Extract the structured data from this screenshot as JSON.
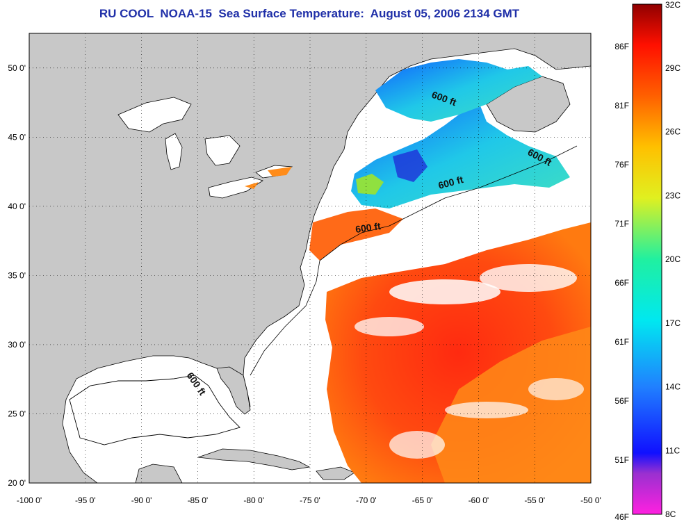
{
  "title": "RU COOL  NOAA-15  Sea Surface Temperature:  August 05, 2006 2134 GMT",
  "map": {
    "lon_range": [
      -100,
      -50
    ],
    "lat_range": [
      20,
      52.5
    ],
    "lon_ticks": [
      "-100 0'",
      "-95 0'",
      "-90 0'",
      "-85 0'",
      "-80 0'",
      "-75 0'",
      "-70 0'",
      "-65 0'",
      "-60 0'",
      "-55 0'",
      "-50 0'"
    ],
    "lat_ticks": [
      "20 0'",
      "25 0'",
      "30 0'",
      "35 0'",
      "40 0'",
      "45 0'",
      "50 0'"
    ],
    "contour_labels": [
      "600 ft",
      "600 ft",
      "600 ft",
      "600 ft",
      "600 ft"
    ],
    "colors": {
      "land": "#c8c8c8",
      "water_no_data": "#ffffff",
      "title": "#1f2fa8"
    }
  },
  "colorbar": {
    "fahrenheit_labels": [
      "86F",
      "81F",
      "76F",
      "71F",
      "66F",
      "61F",
      "56F",
      "51F",
      "46F"
    ],
    "celsius_labels": [
      "32C",
      "29C",
      "26C",
      "23C",
      "20C",
      "17C",
      "14C",
      "11C",
      "8C"
    ],
    "range_c": [
      8,
      32
    ]
  }
}
